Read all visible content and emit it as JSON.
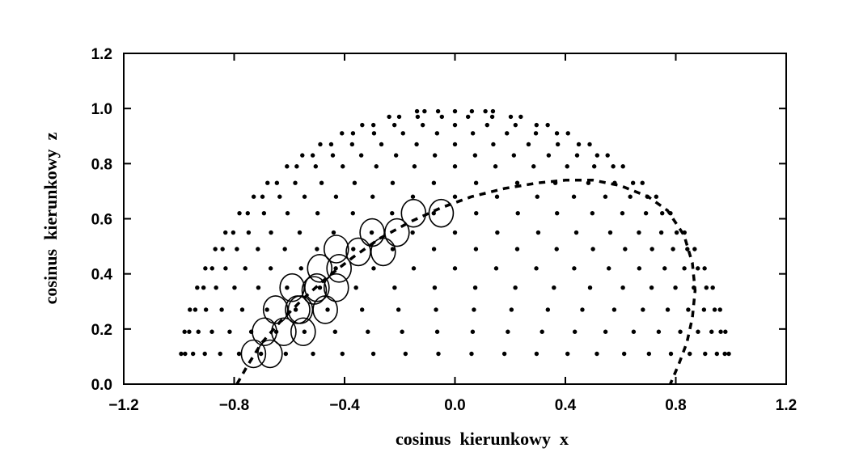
{
  "chart_data": {
    "type": "scatter",
    "title": "",
    "xlabel": "cosinus  kierunkowy  x",
    "ylabel": "cosinus  kierunkowy  z",
    "xlim": [
      -1.2,
      1.2
    ],
    "ylim": [
      0.0,
      1.2
    ],
    "xticks": [
      -1.2,
      -0.8,
      -0.4,
      0.0,
      0.4,
      0.8,
      1.2
    ],
    "yticks": [
      0.0,
      0.2,
      0.4,
      0.6,
      0.8,
      1.0,
      1.2
    ],
    "xtick_labels": [
      "−1.2",
      "−0.8",
      "−0.4",
      "0.0",
      "0.4",
      "0.8",
      "1.2"
    ],
    "ytick_labels": [
      "0.0",
      "0.2",
      "0.4",
      "0.6",
      "0.8",
      "1.0",
      "1.2"
    ],
    "grid": false,
    "legend": "none",
    "series": [
      {
        "style": "dots",
        "color": "#000000",
        "rows_z": [
          0.11,
          0.19,
          0.27,
          0.35,
          0.42,
          0.49,
          0.55,
          0.62,
          0.68,
          0.73,
          0.79,
          0.83,
          0.87,
          0.91,
          0.94,
          0.97,
          0.99
        ],
        "points_per_row": [
          26,
          24,
          22,
          20,
          19,
          18,
          17,
          16,
          15,
          14,
          13,
          12,
          11,
          10,
          9,
          8,
          7
        ],
        "description_source": "dots on upper unit hemisphere in x-z projection"
      },
      {
        "style": "circles",
        "color": "#000000",
        "points": [
          [
            -0.73,
            0.11
          ],
          [
            -0.67,
            0.11
          ],
          [
            -0.69,
            0.19
          ],
          [
            -0.62,
            0.19
          ],
          [
            -0.55,
            0.19
          ],
          [
            -0.65,
            0.27
          ],
          [
            -0.57,
            0.27
          ],
          [
            -0.56,
            0.27
          ],
          [
            -0.47,
            0.27
          ],
          [
            -0.59,
            0.35
          ],
          [
            -0.51,
            0.34
          ],
          [
            -0.5,
            0.35
          ],
          [
            -0.43,
            0.35
          ],
          [
            -0.49,
            0.42
          ],
          [
            -0.42,
            0.42
          ],
          [
            -0.43,
            0.49
          ],
          [
            -0.35,
            0.48
          ],
          [
            -0.26,
            0.48
          ],
          [
            -0.3,
            0.55
          ],
          [
            -0.21,
            0.55
          ],
          [
            -0.15,
            0.62
          ],
          [
            -0.05,
            0.62
          ]
        ]
      },
      {
        "style": "dashed-line",
        "color": "#000000",
        "x": [
          -0.79,
          -0.75,
          -0.7,
          -0.63,
          -0.55,
          -0.46,
          -0.37,
          -0.27,
          -0.16,
          -0.05,
          0.06,
          0.18,
          0.3,
          0.4,
          0.5,
          0.6,
          0.7,
          0.77,
          0.83,
          0.86,
          0.87,
          0.86,
          0.84,
          0.81,
          0.78
        ],
        "y": [
          0.0,
          0.07,
          0.15,
          0.23,
          0.31,
          0.39,
          0.46,
          0.53,
          0.59,
          0.64,
          0.68,
          0.71,
          0.73,
          0.74,
          0.74,
          0.72,
          0.68,
          0.63,
          0.54,
          0.44,
          0.34,
          0.24,
          0.15,
          0.07,
          0.0
        ]
      }
    ]
  }
}
